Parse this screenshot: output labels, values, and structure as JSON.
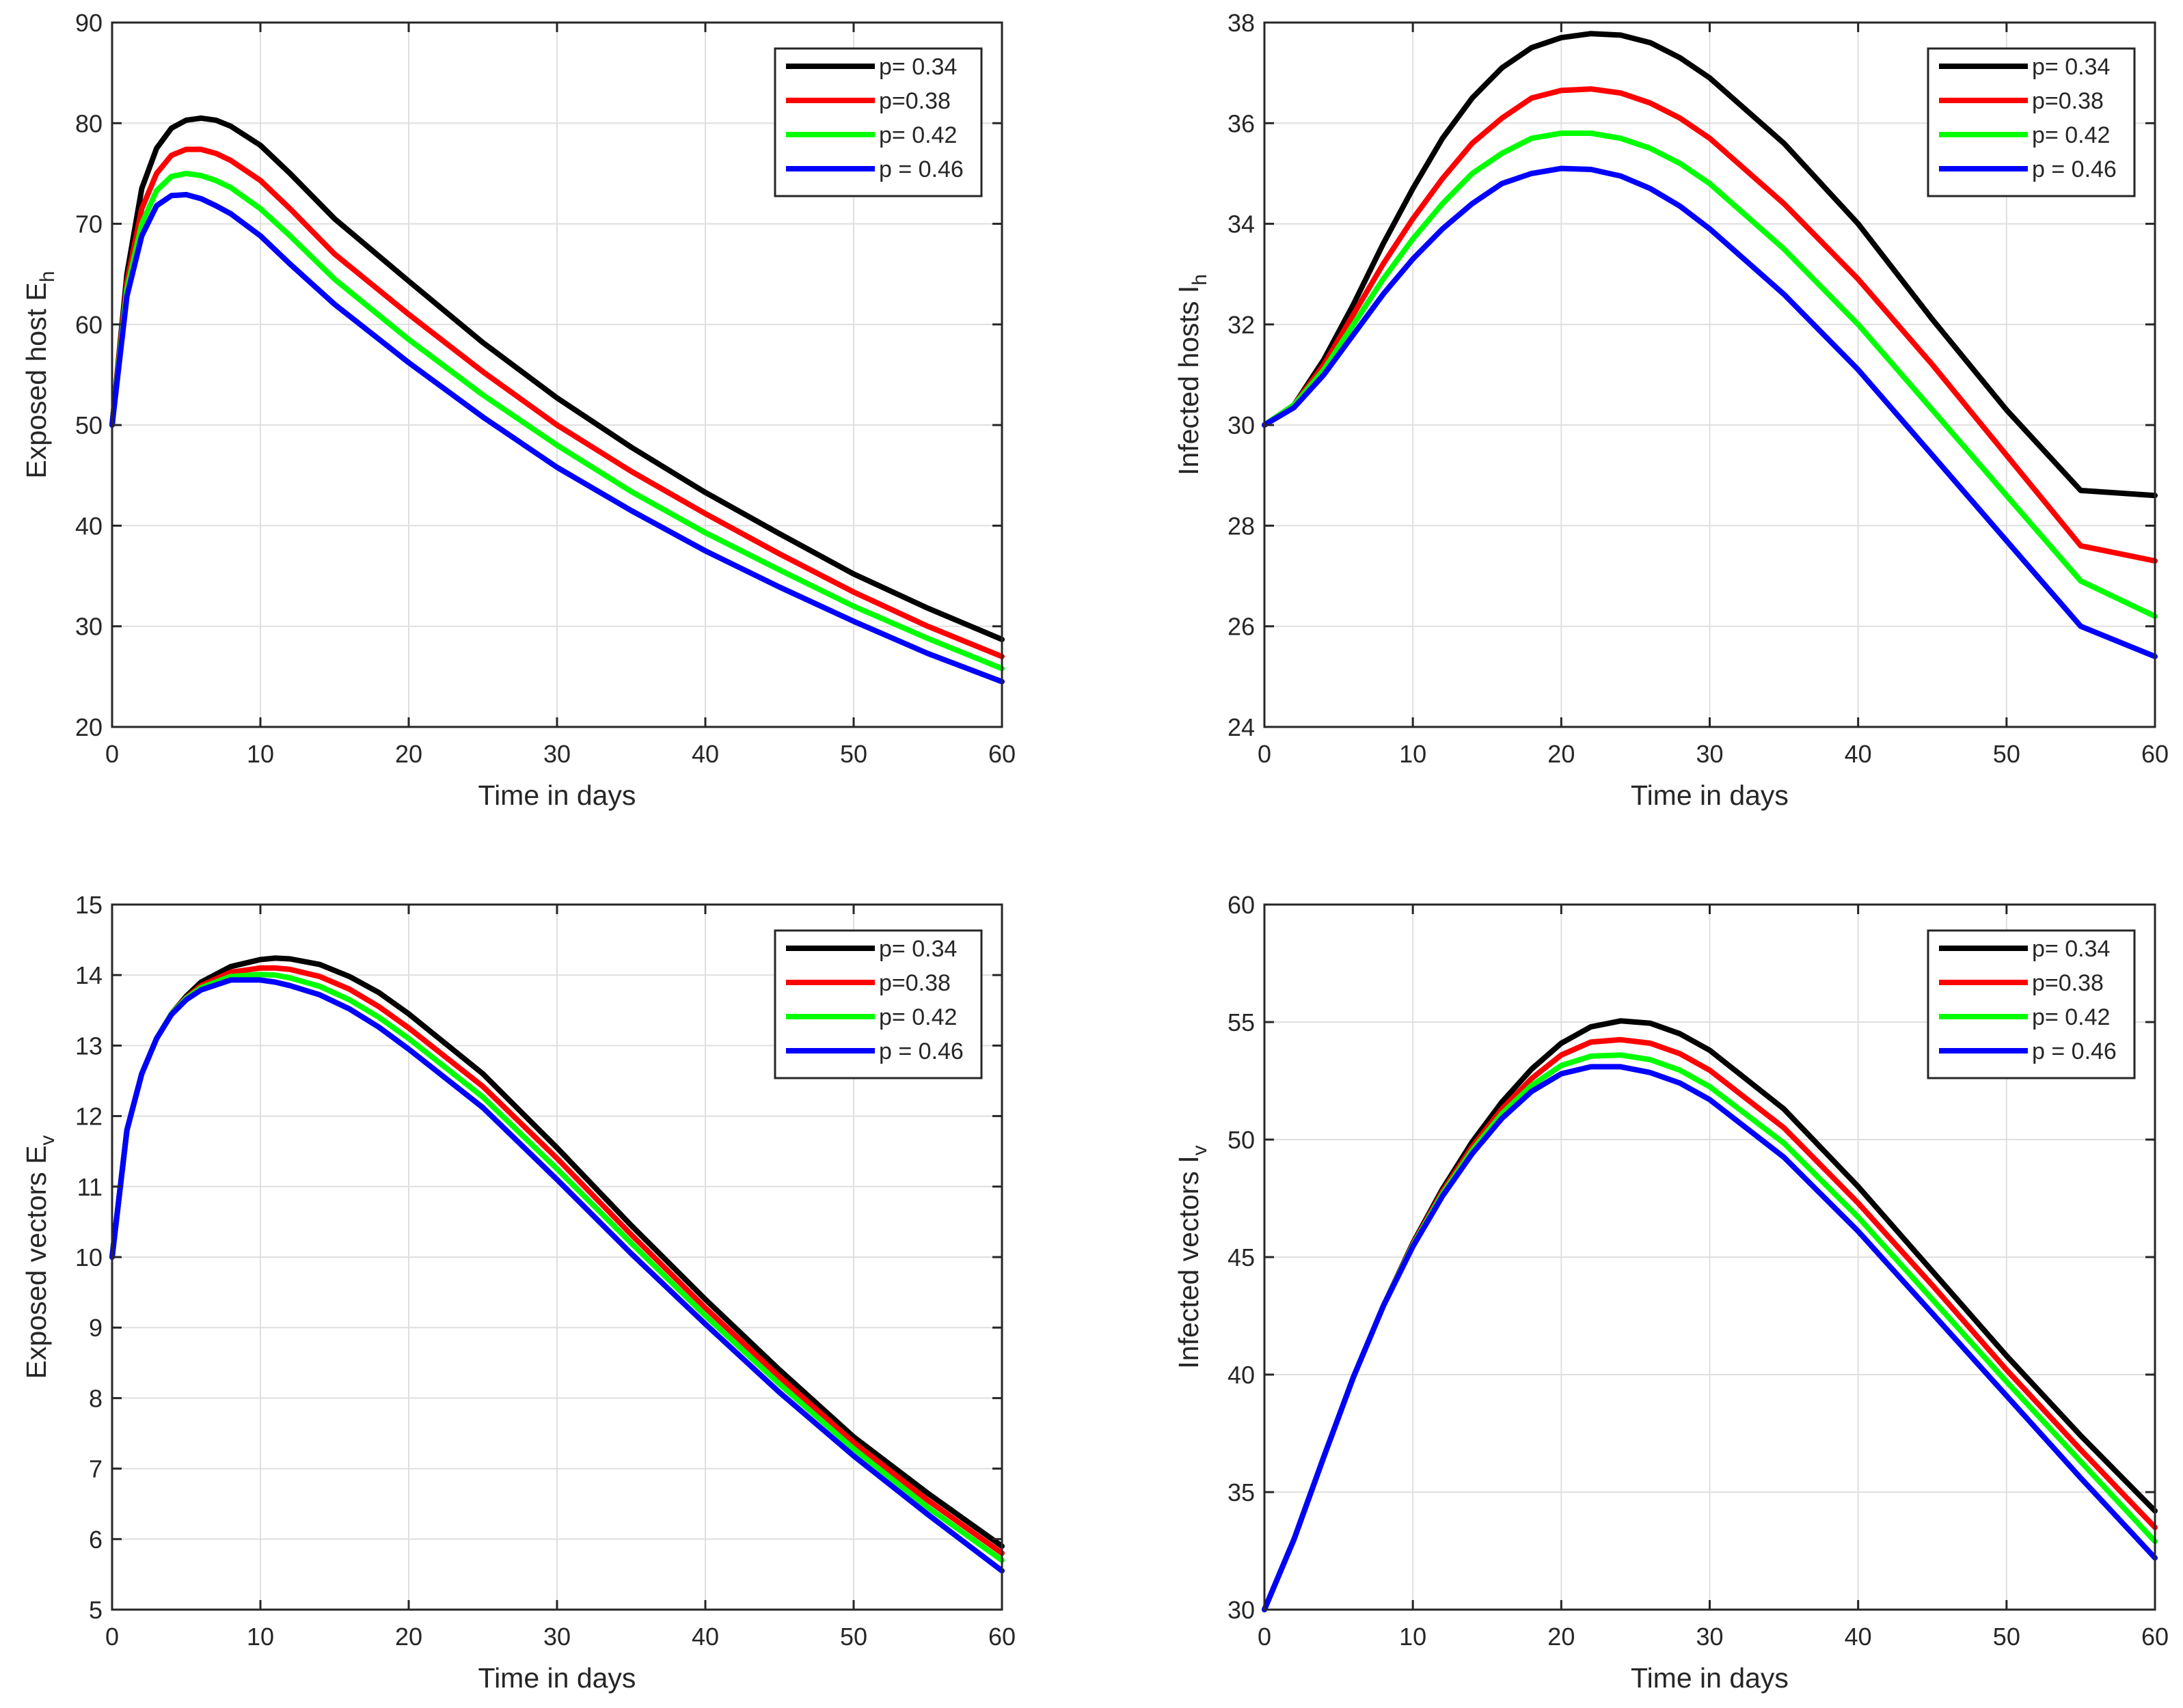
{
  "chart_data": [
    {
      "type": "line",
      "xlabel": "Time in days",
      "ylabel": "Exposed host E",
      "ylabel_sub": "h",
      "xlim": [
        0,
        60
      ],
      "ylim": [
        20,
        90
      ],
      "xticks": [
        0,
        10,
        20,
        30,
        40,
        50,
        60
      ],
      "yticks": [
        20,
        30,
        40,
        50,
        60,
        70,
        80,
        90
      ],
      "grid": true,
      "legend_position": "top-right",
      "series": [
        {
          "name": "p= 0.34",
          "color": "#000000",
          "x": [
            0,
            1,
            2,
            3,
            4,
            5,
            6,
            7,
            8,
            10,
            12,
            15,
            20,
            25,
            30,
            35,
            40,
            45,
            50,
            55,
            60
          ],
          "y": [
            50,
            65,
            73.5,
            77.5,
            79.5,
            80.3,
            80.5,
            80.3,
            79.7,
            77.8,
            75,
            70.5,
            64.3,
            58.2,
            52.7,
            47.8,
            43.3,
            39.2,
            35.2,
            31.8,
            28.7
          ]
        },
        {
          "name": "p=0.38",
          "color": "#ff0000",
          "x": [
            0,
            1,
            2,
            3,
            4,
            5,
            6,
            7,
            8,
            10,
            12,
            15,
            20,
            25,
            30,
            35,
            40,
            45,
            50,
            55,
            60
          ],
          "y": [
            50,
            64.2,
            71.5,
            75,
            76.8,
            77.4,
            77.4,
            77,
            76.3,
            74.3,
            71.5,
            67,
            61,
            55.3,
            50,
            45.4,
            41.2,
            37.2,
            33.4,
            30,
            27
          ]
        },
        {
          "name": "p= 0.42",
          "color": "#00ff00",
          "x": [
            0,
            1,
            2,
            3,
            4,
            5,
            6,
            7,
            8,
            10,
            12,
            15,
            20,
            25,
            30,
            35,
            40,
            45,
            50,
            55,
            60
          ],
          "y": [
            50,
            63.5,
            70,
            73.3,
            74.7,
            75,
            74.8,
            74.3,
            73.6,
            71.5,
            68.8,
            64.5,
            58.5,
            53,
            48,
            43.4,
            39.3,
            35.6,
            32,
            28.8,
            25.8
          ]
        },
        {
          "name": "p = 0.46",
          "color": "#0000ff",
          "x": [
            0,
            1,
            2,
            3,
            4,
            5,
            6,
            7,
            8,
            10,
            12,
            15,
            20,
            25,
            30,
            35,
            40,
            45,
            50,
            55,
            60
          ],
          "y": [
            50,
            62.8,
            68.8,
            71.8,
            72.8,
            72.9,
            72.5,
            71.8,
            71,
            68.8,
            66,
            62,
            56.2,
            50.8,
            45.8,
            41.5,
            37.5,
            33.9,
            30.5,
            27.3,
            24.5
          ]
        }
      ]
    },
    {
      "type": "line",
      "xlabel": "Time in days",
      "ylabel": "Infected  hosts I",
      "ylabel_sub": "h",
      "xlim": [
        0,
        60
      ],
      "ylim": [
        24,
        38
      ],
      "xticks": [
        0,
        10,
        20,
        30,
        40,
        50,
        60
      ],
      "yticks": [
        24,
        26,
        28,
        30,
        32,
        34,
        36,
        38
      ],
      "grid": true,
      "legend_position": "top-right",
      "series": [
        {
          "name": "p= 0.34",
          "color": "#000000",
          "x": [
            0,
            2,
            4,
            6,
            8,
            10,
            12,
            14,
            16,
            18,
            20,
            22,
            24,
            26,
            28,
            30,
            35,
            40,
            45,
            50,
            55,
            60
          ],
          "y": [
            30,
            30.4,
            31.3,
            32.4,
            33.6,
            34.7,
            35.7,
            36.5,
            37.1,
            37.5,
            37.7,
            37.78,
            37.75,
            37.6,
            37.3,
            36.9,
            35.6,
            34,
            32.1,
            30.3,
            28.7,
            28.6
          ]
        },
        {
          "name": "p=0.38",
          "color": "#ff0000",
          "x": [
            0,
            2,
            4,
            6,
            8,
            10,
            12,
            14,
            16,
            18,
            20,
            22,
            24,
            26,
            28,
            30,
            35,
            40,
            45,
            50,
            55,
            60
          ],
          "y": [
            30,
            30.4,
            31.2,
            32.2,
            33.2,
            34.1,
            34.9,
            35.6,
            36.1,
            36.5,
            36.65,
            36.68,
            36.6,
            36.4,
            36.1,
            35.7,
            34.4,
            32.9,
            31.2,
            29.4,
            27.6,
            27.3
          ]
        },
        {
          "name": "p= 0.42",
          "color": "#00ff00",
          "x": [
            0,
            2,
            4,
            6,
            8,
            10,
            12,
            14,
            16,
            18,
            20,
            22,
            24,
            26,
            28,
            30,
            35,
            40,
            45,
            50,
            55,
            60
          ],
          "y": [
            30,
            30.4,
            31.1,
            32,
            32.9,
            33.7,
            34.4,
            35,
            35.4,
            35.7,
            35.8,
            35.8,
            35.7,
            35.5,
            35.2,
            34.8,
            33.5,
            32,
            30.3,
            28.6,
            26.9,
            26.2
          ]
        },
        {
          "name": "p = 0.46",
          "color": "#0000ff",
          "x": [
            0,
            2,
            4,
            6,
            8,
            10,
            12,
            14,
            16,
            18,
            20,
            22,
            24,
            26,
            28,
            30,
            35,
            40,
            45,
            50,
            55,
            60
          ],
          "y": [
            30,
            30.35,
            31,
            31.8,
            32.6,
            33.3,
            33.9,
            34.4,
            34.8,
            35,
            35.1,
            35.08,
            34.95,
            34.7,
            34.35,
            33.9,
            32.6,
            31.1,
            29.4,
            27.7,
            26,
            25.4
          ]
        }
      ]
    },
    {
      "type": "line",
      "xlabel": "Time in days",
      "ylabel": "Exposed vectors E",
      "ylabel_sub": "v",
      "xlim": [
        0,
        60
      ],
      "ylim": [
        5,
        15
      ],
      "xticks": [
        0,
        10,
        20,
        30,
        40,
        50,
        60
      ],
      "yticks": [
        5,
        6,
        7,
        8,
        9,
        10,
        11,
        12,
        13,
        14,
        15
      ],
      "grid": true,
      "legend_position": "top-right",
      "series": [
        {
          "name": "p= 0.34",
          "color": "#000000",
          "x": [
            0,
            1,
            2,
            3,
            4,
            5,
            6,
            8,
            10,
            11,
            12,
            14,
            16,
            18,
            20,
            25,
            30,
            35,
            40,
            45,
            50,
            55,
            60
          ],
          "y": [
            10,
            11.8,
            12.6,
            13.1,
            13.45,
            13.7,
            13.9,
            14.12,
            14.22,
            14.24,
            14.23,
            14.15,
            13.98,
            13.75,
            13.45,
            12.6,
            11.55,
            10.45,
            9.4,
            8.4,
            7.45,
            6.65,
            5.9
          ]
        },
        {
          "name": "p=0.38",
          "color": "#ff0000",
          "x": [
            0,
            1,
            2,
            3,
            4,
            5,
            6,
            8,
            10,
            11,
            12,
            14,
            16,
            18,
            20,
            25,
            30,
            35,
            40,
            45,
            50,
            55,
            60
          ],
          "y": [
            10,
            11.8,
            12.6,
            13.1,
            13.45,
            13.68,
            13.85,
            14.04,
            14.1,
            14.1,
            14.08,
            13.98,
            13.8,
            13.55,
            13.25,
            12.42,
            11.4,
            10.32,
            9.28,
            8.3,
            7.37,
            6.55,
            5.8
          ]
        },
        {
          "name": "p= 0.42",
          "color": "#00ff00",
          "x": [
            0,
            1,
            2,
            3,
            4,
            5,
            6,
            8,
            10,
            11,
            12,
            14,
            16,
            18,
            20,
            25,
            30,
            35,
            40,
            45,
            50,
            55,
            60
          ],
          "y": [
            10,
            11.8,
            12.6,
            13.1,
            13.45,
            13.67,
            13.82,
            13.98,
            14.01,
            14,
            13.96,
            13.84,
            13.65,
            13.4,
            13.1,
            12.27,
            11.25,
            10.2,
            9.17,
            8.2,
            7.28,
            6.45,
            5.7
          ]
        },
        {
          "name": "p = 0.46",
          "color": "#0000ff",
          "x": [
            0,
            1,
            2,
            3,
            4,
            5,
            6,
            8,
            10,
            11,
            12,
            14,
            16,
            18,
            20,
            25,
            30,
            35,
            40,
            45,
            50,
            55,
            60
          ],
          "y": [
            10,
            11.8,
            12.6,
            13.1,
            13.44,
            13.65,
            13.79,
            13.93,
            13.93,
            13.9,
            13.85,
            13.72,
            13.52,
            13.26,
            12.95,
            12.12,
            11.1,
            10.05,
            9.05,
            8.08,
            7.18,
            6.35,
            5.55
          ]
        }
      ]
    },
    {
      "type": "line",
      "xlabel": "Time in days",
      "ylabel": "Infected vectors I",
      "ylabel_sub": "v",
      "xlim": [
        0,
        60
      ],
      "ylim": [
        30,
        60
      ],
      "xticks": [
        0,
        10,
        20,
        30,
        40,
        50,
        60
      ],
      "yticks": [
        30,
        35,
        40,
        45,
        50,
        55,
        60
      ],
      "grid": true,
      "legend_position": "top-right",
      "series": [
        {
          "name": "p= 0.34",
          "color": "#000000",
          "x": [
            0,
            2,
            4,
            6,
            8,
            10,
            12,
            14,
            16,
            18,
            20,
            22,
            24,
            26,
            28,
            30,
            35,
            40,
            45,
            50,
            55,
            60
          ],
          "y": [
            30,
            33,
            36.5,
            39.9,
            42.9,
            45.6,
            47.9,
            49.9,
            51.6,
            53,
            54.1,
            54.8,
            55.05,
            54.95,
            54.5,
            53.8,
            51.3,
            48,
            44.4,
            40.8,
            37.4,
            34.2
          ]
        },
        {
          "name": "p=0.38",
          "color": "#ff0000",
          "x": [
            0,
            2,
            4,
            6,
            8,
            10,
            12,
            14,
            16,
            18,
            20,
            22,
            24,
            26,
            28,
            30,
            35,
            40,
            45,
            50,
            55,
            60
          ],
          "y": [
            30,
            33,
            36.5,
            39.9,
            42.9,
            45.55,
            47.8,
            49.7,
            51.3,
            52.6,
            53.6,
            54.15,
            54.25,
            54.1,
            53.65,
            52.95,
            50.5,
            47.3,
            43.8,
            40.2,
            36.8,
            33.5
          ]
        },
        {
          "name": "p= 0.42",
          "color": "#00ff00",
          "x": [
            0,
            2,
            4,
            6,
            8,
            10,
            12,
            14,
            16,
            18,
            20,
            22,
            24,
            26,
            28,
            30,
            35,
            40,
            45,
            50,
            55,
            60
          ],
          "y": [
            30,
            33,
            36.5,
            39.9,
            42.9,
            45.5,
            47.7,
            49.55,
            51.1,
            52.3,
            53.15,
            53.55,
            53.6,
            53.4,
            52.95,
            52.25,
            49.85,
            46.7,
            43.2,
            39.7,
            36.3,
            32.9
          ]
        },
        {
          "name": "p = 0.46",
          "color": "#0000ff",
          "x": [
            0,
            2,
            4,
            6,
            8,
            10,
            12,
            14,
            16,
            18,
            20,
            22,
            24,
            26,
            28,
            30,
            35,
            40,
            45,
            50,
            55,
            60
          ],
          "y": [
            30,
            33,
            36.5,
            39.9,
            42.9,
            45.45,
            47.6,
            49.4,
            50.9,
            52.05,
            52.8,
            53.1,
            53.1,
            52.85,
            52.4,
            51.7,
            49.25,
            46.1,
            42.6,
            39.1,
            35.6,
            32.2
          ]
        }
      ]
    }
  ]
}
